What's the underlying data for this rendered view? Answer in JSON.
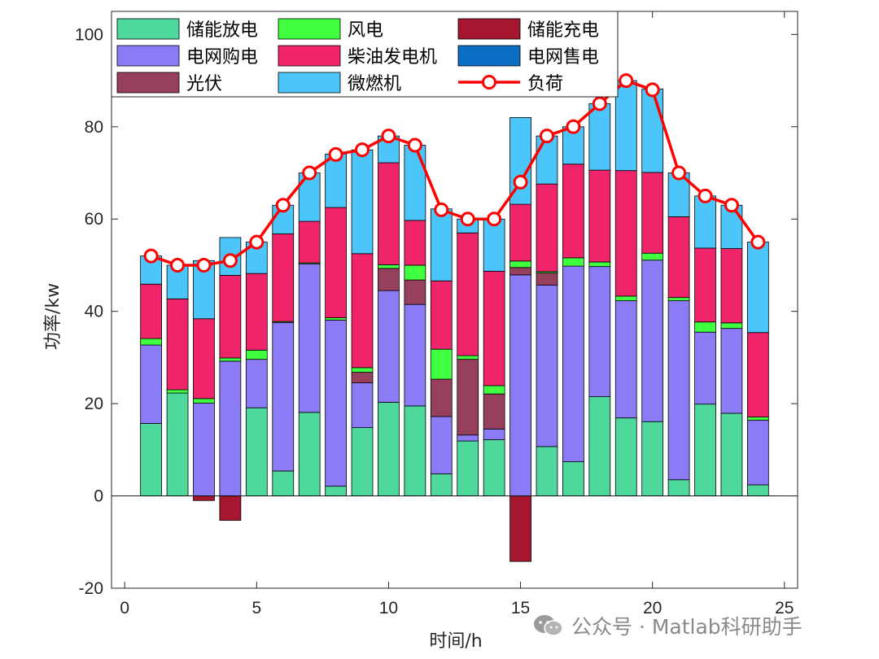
{
  "chart_data": {
    "type": "bar",
    "stacked": true,
    "title": "",
    "xlabel": "时间/h",
    "ylabel": "功率/kw",
    "xlim": [
      -0.5,
      25.5
    ],
    "ylim": [
      -20,
      105
    ],
    "xticks": [
      0,
      5,
      10,
      15,
      20,
      25
    ],
    "yticks": [
      -20,
      0,
      20,
      40,
      60,
      80,
      100
    ],
    "grid": false,
    "legend_position": "top-left, 3 columns",
    "x": [
      1,
      2,
      3,
      4,
      5,
      6,
      7,
      8,
      9,
      10,
      11,
      12,
      13,
      14,
      15,
      16,
      17,
      18,
      19,
      20,
      21,
      22,
      23,
      24
    ],
    "series": [
      {
        "name": "储能放电",
        "color": "#4fd89c",
        "values": [
          15.7,
          22.3,
          0,
          0,
          19.1,
          5.4,
          18.1,
          2.1,
          14.8,
          20.3,
          19.5,
          4.8,
          11.9,
          12.2,
          0,
          10.7,
          7.4,
          21.5,
          16.9,
          16.1,
          3.5,
          19.9,
          17.9,
          2.4
        ]
      },
      {
        "name": "电网购电",
        "color": "#8b7cf6",
        "values": [
          17.0,
          0,
          20.1,
          29.2,
          10.5,
          32.2,
          32.2,
          36.0,
          9.7,
          24.2,
          22.0,
          12.4,
          1.3,
          2.3,
          47.9,
          35.0,
          42.4,
          28.2,
          25.4,
          35.0,
          38.8,
          15.6,
          18.4,
          14.0
        ]
      },
      {
        "name": "光伏",
        "color": "#97405e",
        "values": [
          0,
          0,
          0,
          0,
          0,
          0,
          0,
          0,
          2.3,
          4.8,
          5.3,
          8.1,
          16.4,
          7.6,
          1.6,
          2.6,
          0,
          0,
          0,
          0,
          0,
          0,
          0,
          0
        ]
      },
      {
        "name": "风电",
        "color": "#3fff3f",
        "values": [
          1.4,
          0.7,
          1.0,
          0.7,
          2.0,
          0.2,
          0.2,
          0.5,
          1.0,
          0.8,
          3.2,
          6.5,
          0.8,
          1.8,
          1.4,
          0.3,
          1.8,
          1.0,
          1.0,
          1.5,
          0.7,
          2.2,
          1.2,
          0.7
        ]
      },
      {
        "name": "柴油发电机",
        "color": "#f0246a",
        "values": [
          11.8,
          19.7,
          17.3,
          17.9,
          16.6,
          19.0,
          9.0,
          23.9,
          24.7,
          22.1,
          9.7,
          14.8,
          26.6,
          24.8,
          12.3,
          19.0,
          20.3,
          19.9,
          27.2,
          17.5,
          17.5,
          16.0,
          16.1,
          18.3
        ]
      },
      {
        "name": "微燃机",
        "color": "#4cc5fa",
        "values": [
          6.1,
          7.3,
          12.6,
          8.2,
          6.8,
          6.2,
          10.5,
          11.6,
          22.5,
          5.8,
          16.3,
          15.6,
          3.0,
          11.3,
          18.8,
          10.4,
          8.1,
          14.4,
          19.5,
          18.1,
          9.5,
          11.3,
          9.4,
          19.6
        ]
      },
      {
        "name": "储能充电",
        "color": "#a6162e",
        "values": [
          0,
          0,
          -1.0,
          -5.3,
          0,
          0,
          0,
          0,
          0,
          0,
          0,
          0,
          0,
          0,
          -14.2,
          0,
          0,
          0,
          0,
          0,
          0,
          0,
          0,
          0
        ]
      },
      {
        "name": "电网售电",
        "color": "#0a6ec4",
        "values": [
          0,
          0,
          0,
          0,
          0,
          0,
          0,
          0,
          0,
          0,
          0,
          0,
          0,
          0,
          0,
          0,
          0,
          0,
          0,
          0,
          0,
          0,
          0,
          0
        ]
      },
      {
        "name": "负荷",
        "type": "line",
        "color": "#ff0000",
        "marker": "circle",
        "values": [
          52,
          50,
          50,
          51,
          55,
          63,
          70,
          74,
          75,
          78,
          76,
          62,
          60,
          60,
          68,
          78,
          80,
          85,
          90,
          88,
          70,
          65,
          63,
          55
        ]
      }
    ],
    "legend_order": [
      "储能放电",
      "风电",
      "储能充电",
      "电网购电",
      "柴油发电机",
      "电网售电",
      "光伏",
      "微燃机",
      "负荷"
    ]
  },
  "watermark": {
    "text": "公众号 · Matlab科研助手",
    "icon": "wechat-icon"
  }
}
